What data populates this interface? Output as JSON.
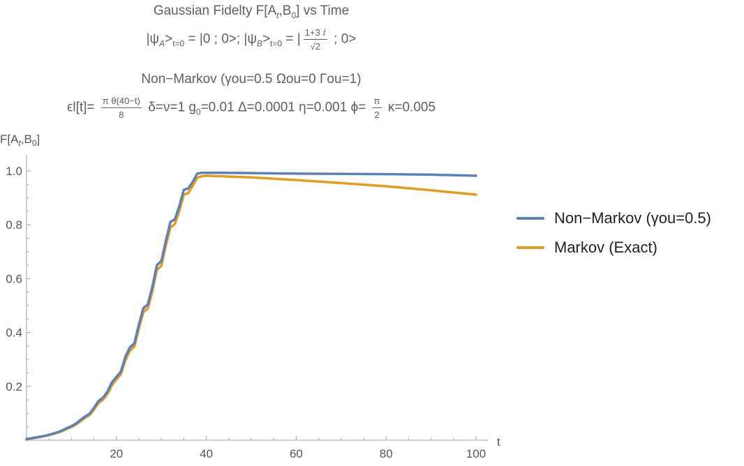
{
  "title": {
    "line1": {
      "text": "Gaussian Fidelty F[A",
      "sub": "t",
      "mid": ",B",
      "sub2": "0",
      "end": "] vs Time"
    },
    "line2": {
      "a": "|ψ",
      "a_sub": "A",
      "a_gt": ">",
      "a_gt_sub": "t=0",
      "a_eq": " = |0 ; 0>; |ψ",
      "b_sub": "B",
      "b_gt": ">",
      "b_gt_sub": "t=0",
      "b_eq": " = |",
      "frac_num": "1+3 ⅈ",
      "frac_den": "√2",
      "end": " ; 0>"
    },
    "line3": "Non−Markov (γou=0.5  Ωou=0 Γou=1)",
    "line4": {
      "start": "ϵl[t]= ",
      "frac_num": "π θ(40−t)",
      "frac_den": "8",
      "middle": " δ=ν=1 g",
      "g_sub": "0",
      "rest": "=0.01 Δ=0.0001 η=0.001 ϕ= ",
      "phi_num": "π",
      "phi_den": "2",
      "end": " κ=0.005"
    }
  },
  "chart_data": {
    "type": "line",
    "xlabel": "t",
    "ylabel": {
      "prefix": "F[A",
      "sub": "t",
      "mid": ",B",
      "sub2": "0",
      "end": "]"
    },
    "xlim": [
      0,
      100
    ],
    "ylim": [
      0,
      1.0
    ],
    "xticks": [
      20,
      40,
      60,
      80,
      100
    ],
    "yticks": [
      0.2,
      0.4,
      0.6,
      0.8,
      1.0
    ],
    "ytick_labels": [
      "0.2",
      "0.4",
      "0.6",
      "0.8",
      "1.0"
    ],
    "grid": false,
    "legend_position": "right",
    "series": [
      {
        "name": "Non−Markov (γou=0.5)",
        "color": "#5e81b5",
        "x": [
          0,
          1,
          2,
          3,
          4,
          5,
          6,
          7,
          8,
          9,
          10,
          11,
          12,
          13,
          14,
          15,
          16,
          17,
          18,
          19,
          20,
          21,
          22,
          23,
          24,
          25,
          26,
          27,
          28,
          29,
          30,
          31,
          32,
          33,
          34,
          35,
          36,
          37,
          38,
          39,
          40,
          45,
          50,
          60,
          70,
          80,
          90,
          100
        ],
        "y": [
          0.005,
          0.007,
          0.01,
          0.013,
          0.016,
          0.02,
          0.025,
          0.03,
          0.037,
          0.045,
          0.052,
          0.062,
          0.075,
          0.088,
          0.098,
          0.12,
          0.145,
          0.158,
          0.18,
          0.215,
          0.235,
          0.255,
          0.31,
          0.345,
          0.36,
          0.43,
          0.49,
          0.505,
          0.57,
          0.65,
          0.665,
          0.74,
          0.81,
          0.82,
          0.87,
          0.93,
          0.935,
          0.96,
          0.99,
          0.993,
          0.993,
          0.993,
          0.992,
          0.99,
          0.989,
          0.988,
          0.986,
          0.982
        ]
      },
      {
        "name": "Markov (Exact)",
        "color": "#e19c24",
        "x": [
          0,
          1,
          2,
          3,
          4,
          5,
          6,
          7,
          8,
          9,
          10,
          11,
          12,
          13,
          14,
          15,
          16,
          17,
          18,
          19,
          20,
          21,
          22,
          23,
          24,
          25,
          26,
          27,
          28,
          29,
          30,
          31,
          32,
          33,
          34,
          35,
          36,
          37,
          38,
          39,
          40,
          45,
          50,
          60,
          70,
          80,
          90,
          100
        ],
        "y": [
          0.004,
          0.006,
          0.009,
          0.012,
          0.015,
          0.019,
          0.023,
          0.028,
          0.034,
          0.042,
          0.049,
          0.058,
          0.07,
          0.083,
          0.093,
          0.113,
          0.137,
          0.15,
          0.171,
          0.204,
          0.225,
          0.245,
          0.297,
          0.332,
          0.348,
          0.415,
          0.475,
          0.49,
          0.553,
          0.632,
          0.648,
          0.722,
          0.79,
          0.802,
          0.852,
          0.912,
          0.918,
          0.945,
          0.975,
          0.98,
          0.982,
          0.979,
          0.976,
          0.966,
          0.955,
          0.943,
          0.928,
          0.912
        ]
      }
    ]
  }
}
